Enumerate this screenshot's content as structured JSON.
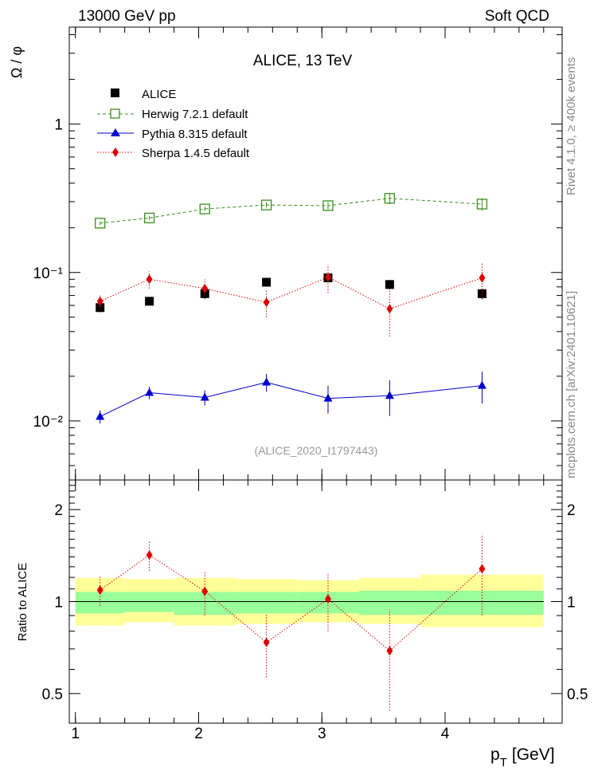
{
  "header": {
    "left": "13000 GeV pp",
    "right": "Soft QCD"
  },
  "side_label_top": "Rivet 4.1.0, ≥ 400k events",
  "side_label_bottom": "mcplots.cern.ch [arXiv:2401.10621]",
  "watermark": "(ALICE_2020_I1797443)",
  "chart_data": [
    {
      "type": "scatter",
      "title": "ALICE, 13 TeV",
      "ylabel": "Ω / φ",
      "yscale": "log",
      "ylim": [
        0.004,
        4.5
      ],
      "xlim": [
        0.95,
        4.95
      ],
      "y_ticks": [
        {
          "value": 1,
          "label": "1"
        },
        {
          "value": 0.1,
          "label": "10⁻¹"
        },
        {
          "value": 0.01,
          "label": "10⁻²"
        }
      ],
      "legend": [
        "ALICE",
        "Herwig 7.2.1 default",
        "Pythia 8.315 default",
        "Sherpa 1.4.5 default"
      ],
      "x": [
        1.2,
        1.6,
        2.05,
        2.55,
        3.05,
        3.55,
        4.3
      ],
      "series": [
        {
          "name": "ALICE",
          "color": "#000000",
          "marker": "square",
          "values": [
            0.058,
            0.064,
            0.072,
            0.086,
            0.092,
            0.083,
            0.072
          ],
          "err": [
            0.004,
            0.004,
            0.005,
            0.005,
            0.006,
            0.006,
            0.006
          ]
        },
        {
          "name": "Herwig 7.2.1 default",
          "color": "#3a8e1c",
          "marker": "open-square",
          "line": "dashed",
          "values": [
            0.215,
            0.233,
            0.268,
            0.285,
            0.282,
            0.316,
            0.289
          ],
          "err": [
            0.006,
            0.007,
            0.009,
            0.012,
            0.016,
            0.028,
            0.028
          ]
        },
        {
          "name": "Pythia 8.315 default",
          "color": "#0000cc",
          "marker": "triangle",
          "line": "solid",
          "values": [
            0.0107,
            0.0155,
            0.0144,
            0.0182,
            0.0142,
            0.0148,
            0.0173
          ],
          "err": [
            0.0011,
            0.0015,
            0.0017,
            0.0025,
            0.003,
            0.004,
            0.0042
          ]
        },
        {
          "name": "Sherpa 1.4.5 default",
          "color": "#dd0000",
          "marker": "diamond",
          "line": "dotted",
          "values": [
            0.064,
            0.09,
            0.078,
            0.063,
            0.093,
            0.057,
            0.092
          ],
          "err": [
            0.006,
            0.012,
            0.012,
            0.013,
            0.02,
            0.02,
            0.025
          ]
        }
      ]
    },
    {
      "type": "scatter",
      "xlabel": "p_T [GeV]",
      "xlabel_main": "p",
      "xlabel_sub": "T",
      "xlabel_unit": "[GeV]",
      "ylabel": "Ratio to ALICE",
      "yscale": "log",
      "ylim": [
        0.4,
        2.5
      ],
      "xlim": [
        0.95,
        4.95
      ],
      "x_ticks": [
        {
          "value": 1,
          "label": "1"
        },
        {
          "value": 2,
          "label": "2"
        },
        {
          "value": 3,
          "label": "3"
        },
        {
          "value": 4,
          "label": "4"
        }
      ],
      "y_ticks": [
        {
          "value": 2,
          "label": "2"
        },
        {
          "value": 1,
          "label": "1"
        },
        {
          "value": 0.5,
          "label": "0.5"
        }
      ],
      "bands": {
        "x_edges": [
          1.0,
          1.4,
          1.8,
          2.3,
          2.8,
          3.3,
          3.8,
          4.8
        ],
        "outer": [
          [
            0.835,
            1.195
          ],
          [
            0.855,
            1.185
          ],
          [
            0.835,
            1.195
          ],
          [
            0.845,
            1.185
          ],
          [
            0.855,
            1.175
          ],
          [
            0.845,
            1.195
          ],
          [
            0.825,
            1.225
          ]
        ],
        "inner": [
          [
            0.915,
            1.075
          ],
          [
            0.925,
            1.075
          ],
          [
            0.905,
            1.075
          ],
          [
            0.915,
            1.075
          ],
          [
            0.915,
            1.075
          ],
          [
            0.905,
            1.085
          ],
          [
            0.905,
            1.085
          ]
        ],
        "outer_color": "#ffff99",
        "inner_color": "#99ff99"
      },
      "series": [
        {
          "name": "Sherpa 1.4.5 default",
          "color": "#dd0000",
          "marker": "diamond",
          "line": "dotted",
          "x": [
            1.2,
            1.6,
            2.05,
            2.55,
            3.05,
            3.55,
            4.3
          ],
          "values": [
            1.09,
            1.42,
            1.08,
            0.735,
            1.02,
            0.69,
            1.28
          ],
          "err_lo": [
            0.12,
            0.16,
            0.18,
            0.17,
            0.22,
            0.25,
            0.38
          ],
          "err_hi": [
            0.12,
            0.16,
            0.18,
            0.17,
            0.22,
            0.25,
            0.38
          ]
        }
      ]
    }
  ]
}
